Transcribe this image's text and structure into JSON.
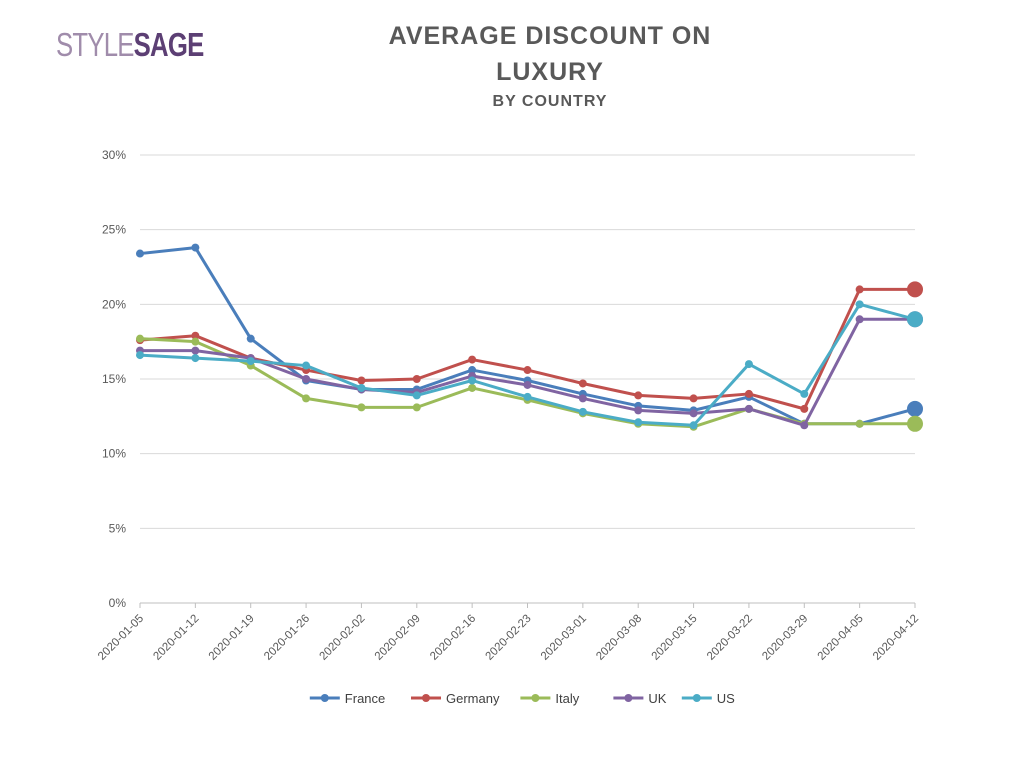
{
  "logo": {
    "part1": "STYLE",
    "part2": "SAGE"
  },
  "chart_data": {
    "type": "line",
    "title": "AVERAGE DISCOUNT ON LUXURY",
    "title_lines": [
      "AVERAGE DISCOUNT ON",
      "LUXURY"
    ],
    "subtitle": "BY COUNTRY",
    "xlabel": "",
    "ylabel": "",
    "x": [
      "2020-01-05",
      "2020-01-12",
      "2020-01-19",
      "2020-01-26",
      "2020-02-02",
      "2020-02-09",
      "2020-02-16",
      "2020-02-23",
      "2020-03-01",
      "2020-03-08",
      "2020-03-15",
      "2020-03-22",
      "2020-03-29",
      "2020-04-05",
      "2020-04-12"
    ],
    "ylim": [
      0,
      30
    ],
    "yticks": [
      0,
      5,
      10,
      15,
      20,
      25,
      30
    ],
    "ytick_labels": [
      "0%",
      "5%",
      "10%",
      "15%",
      "20%",
      "25%",
      "30%"
    ],
    "grid": true,
    "legend_position": "bottom",
    "series": [
      {
        "name": "France",
        "color": "#4a7ebb",
        "values": [
          23.4,
          23.8,
          17.7,
          14.9,
          14.3,
          14.3,
          15.6,
          14.9,
          14.0,
          13.2,
          12.9,
          13.8,
          12.0,
          12.0,
          13.0
        ]
      },
      {
        "name": "Germany",
        "color": "#c0504d",
        "values": [
          17.6,
          17.9,
          16.4,
          15.6,
          14.9,
          15.0,
          16.3,
          15.6,
          14.7,
          13.9,
          13.7,
          14.0,
          13.0,
          21.0,
          21.0
        ]
      },
      {
        "name": "Italy",
        "color": "#9bbb59",
        "values": [
          17.7,
          17.5,
          15.9,
          13.7,
          13.1,
          13.1,
          14.4,
          13.6,
          12.7,
          12.0,
          11.8,
          13.0,
          12.0,
          12.0,
          12.0
        ]
      },
      {
        "name": "UK",
        "color": "#8064a2",
        "values": [
          16.9,
          16.9,
          16.4,
          15.0,
          14.3,
          14.1,
          15.2,
          14.6,
          13.7,
          12.9,
          12.7,
          13.0,
          11.9,
          19.0,
          19.0
        ]
      },
      {
        "name": "US",
        "color": "#4bacc6",
        "values": [
          16.6,
          16.4,
          16.2,
          15.9,
          14.4,
          13.9,
          14.9,
          13.8,
          12.8,
          12.1,
          11.9,
          16.0,
          14.0,
          20.0,
          19.0
        ]
      }
    ]
  }
}
